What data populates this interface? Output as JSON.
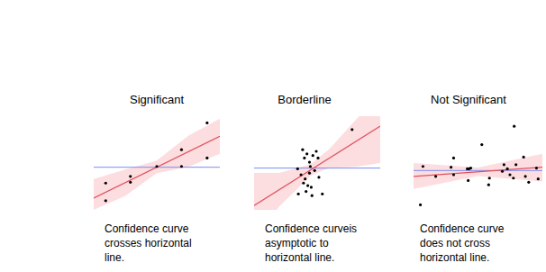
{
  "chart_data": [
    {
      "type": "scatter",
      "title": "Significant",
      "annotation": "Confidence curve crosses horizontal line.",
      "xlim": [
        0,
        10
      ],
      "ylim": [
        0,
        10
      ],
      "tick_labels": false,
      "grid": false,
      "points": {
        "color": "#000000",
        "x": [
          0.95,
          0.95,
          2.91,
          2.91,
          5.0,
          6.96,
          6.96,
          8.99,
          8.99
        ],
        "y": [
          2.86,
          0.98,
          3.57,
          2.95,
          4.64,
          6.43,
          4.64,
          9.29,
          5.54
        ]
      },
      "fit": {
        "color": "#e0505a",
        "x": [
          0,
          10
        ],
        "y": [
          1.25,
          7.86
        ]
      },
      "band": {
        "color": "#fcdde0",
        "x": [
          0,
          2.5,
          5,
          7.5,
          10
        ],
        "lower": [
          0,
          1.5,
          3.93,
          4.6,
          5.98
        ],
        "upper": [
          3.3,
          4.3,
          5.27,
          7.9,
          9.73
        ]
      },
      "reference": {
        "color": "#7b8cf0",
        "value": 4.55
      }
    },
    {
      "type": "scatter",
      "title": "Borderline",
      "annotation": "Confidence curveis asymptotic to horizontal line.",
      "xlim": [
        0,
        10
      ],
      "ylim": [
        0,
        10
      ],
      "tick_labels": false,
      "grid": false,
      "points": {
        "color": "#000000",
        "x": [
          3.45,
          3.85,
          3.99,
          4.19,
          4.39,
          4.66,
          4.93,
          5.07,
          3.72,
          4.05,
          4.39,
          4.8,
          5.14,
          3.92,
          4.26,
          4.53,
          4.12,
          4.59,
          3.51,
          5.41,
          4.46,
          7.77
        ],
        "y": [
          4.38,
          6.43,
          5.54,
          5.98,
          5.09,
          5.8,
          6.25,
          5.54,
          3.75,
          3.3,
          3.93,
          4.2,
          3.48,
          2.86,
          2.59,
          2.41,
          1.96,
          1.52,
          1.7,
          1.7,
          4.64,
          8.57
        ]
      },
      "fit": {
        "color": "#e0505a",
        "x": [
          0,
          10
        ],
        "y": [
          0.45,
          8.93
        ]
      },
      "band": {
        "color": "#fcdde0",
        "x": [
          0,
          2,
          4.5,
          6,
          8,
          10
        ],
        "lower": [
          -3.05,
          0.35,
          3.67,
          4.5,
          4.6,
          5.0
        ],
        "upper": [
          3.95,
          3.95,
          4.87,
          6.54,
          9.53,
          12.3
        ]
      },
      "reference": {
        "color": "#7b8cf0",
        "value": 4.46
      }
    },
    {
      "type": "scatter",
      "title": "Not Significant",
      "annotation": "Confidence curve does not cross horizontal line.",
      "xlim": [
        0,
        10
      ],
      "ylim": [
        0,
        10
      ],
      "tick_labels": false,
      "grid": false,
      "points": {
        "color": "#000000",
        "x": [
          0.53,
          0.73,
          1.72,
          2.91,
          3.11,
          3.11,
          4.17,
          4.24,
          4.3,
          4.44,
          5.3,
          5.83,
          5.89,
          6.89,
          7.02,
          7.28,
          7.48,
          7.75,
          7.81,
          7.95,
          8.54,
          8.68,
          8.94,
          9.54,
          9.67
        ],
        "y": [
          0.54,
          4.64,
          3.57,
          4.55,
          5.54,
          3.75,
          4.38,
          3.13,
          4.38,
          4.46,
          6.96,
          2.68,
          3.39,
          4.11,
          4.82,
          4.38,
          3.75,
          3.39,
          8.93,
          4.82,
          5.63,
          3.57,
          2.95,
          4.46,
          3.3
        ]
      },
      "fit": {
        "color": "#e0505a",
        "x": [
          0,
          10
        ],
        "y": [
          3.57,
          4.55
        ]
      },
      "band": {
        "color": "#fcdde0",
        "x": [
          0,
          5,
          10
        ],
        "lower": [
          2.23,
          3.61,
          3.04
        ],
        "upper": [
          5.0,
          4.51,
          5.98
        ]
      },
      "reference": {
        "color": "#7b8cf0",
        "value": 4.2
      }
    }
  ]
}
